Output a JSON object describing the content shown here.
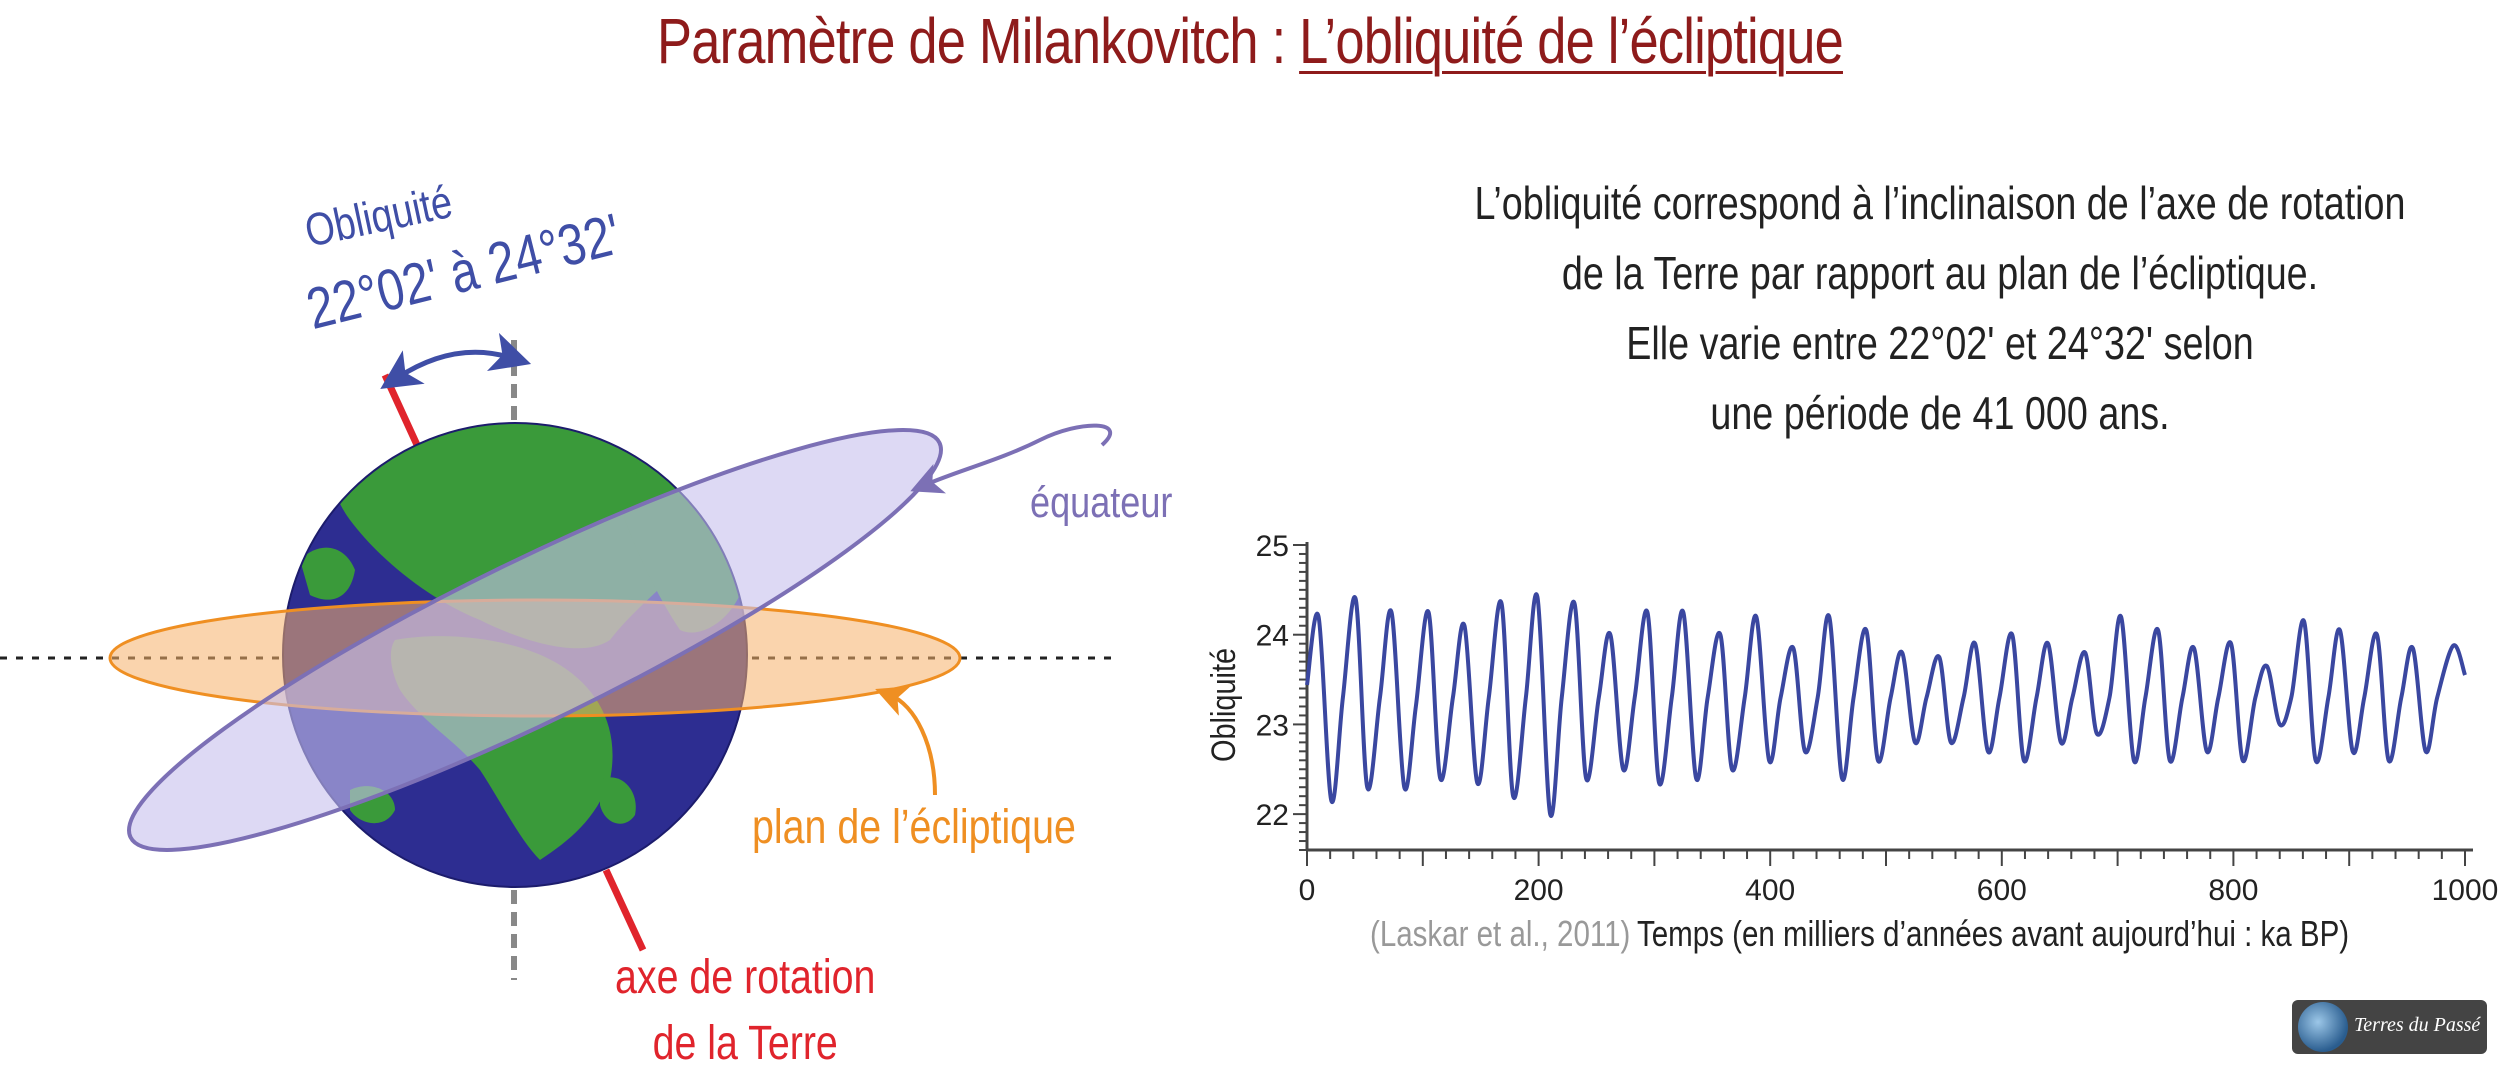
{
  "title": {
    "prefix": "Paramètre de Milankovitch : ",
    "emphasis": "L’obliquité de l’écliptique"
  },
  "description": [
    "L’obliquité correspond à l’inclinaison de l’axe de rotation",
    "de la Terre par rapport au plan de l’écliptique.",
    "Elle varie entre 22°02' et 24°32' selon",
    "une période de 41 000 ans."
  ],
  "diagram": {
    "obliquity_label": "Obliquité",
    "obliquity_range": "22°02' à 24°32'",
    "equator_label": "équateur",
    "ecliptic_label": "plan de l’écliptique",
    "axis_label_line1": "axe de rotation",
    "axis_label_line2": "de la Terre",
    "colors": {
      "title": "#8e1b1b",
      "obliquity": "#3f4ea6",
      "equator": "#7c70b5",
      "ecliptic": "#ef8f22",
      "axis": "#e0242c",
      "ocean": "#2d2d91",
      "land": "#3a9a3a"
    }
  },
  "chart_data": {
    "type": "line",
    "xlabel": "Temps (en milliers d’années avant aujourd’hui : ka BP)",
    "ylabel": "Obliquité",
    "xlim": [
      0,
      1000
    ],
    "ylim": [
      21.6,
      25
    ],
    "x_ticks": [
      0,
      200,
      400,
      600,
      800,
      1000
    ],
    "y_ticks": [
      22,
      23,
      24,
      25
    ],
    "source_note": "(Laskar et al., 2011)",
    "line_color": "#3a47a0",
    "series": [
      {
        "x": [
          0,
          10,
          21,
          31,
          42,
          52,
          63,
          73,
          84,
          94,
          105,
          115,
          126,
          136,
          147,
          157,
          168,
          178,
          189,
          199,
          210,
          220,
          231,
          241,
          252,
          262,
          273,
          283,
          294,
          304,
          315,
          325,
          336,
          346,
          357,
          367,
          378,
          388,
          399,
          409,
          420,
          430,
          441,
          451,
          462,
          472,
          483,
          493,
          504,
          514,
          525,
          535,
          546,
          556,
          567,
          577,
          588,
          598,
          609,
          619,
          630,
          640,
          651,
          661,
          672,
          682,
          693,
          703,
          714,
          724,
          735,
          745,
          756,
          766,
          777,
          787,
          798,
          808,
          819,
          829,
          840,
          850,
          861,
          871,
          882,
          892,
          903,
          913,
          924,
          934,
          945,
          955,
          966,
          976,
          990,
          1000
        ],
        "values": [
          23.44,
          24.2,
          22.15,
          23.3,
          24.4,
          22.3,
          23.3,
          24.25,
          22.3,
          23.2,
          24.25,
          22.4,
          23.3,
          24.1,
          22.35,
          23.3,
          24.35,
          22.2,
          23.3,
          24.42,
          22.0,
          23.3,
          24.35,
          22.4,
          23.3,
          24.0,
          22.5,
          23.3,
          24.25,
          22.35,
          23.3,
          24.25,
          22.4,
          23.3,
          24.0,
          22.5,
          23.3,
          24.2,
          22.6,
          23.3,
          23.85,
          22.7,
          23.3,
          24.2,
          22.4,
          23.3,
          24.05,
          22.6,
          23.3,
          23.8,
          22.8,
          23.3,
          23.75,
          22.8,
          23.3,
          23.9,
          22.7,
          23.3,
          24.0,
          22.6,
          23.3,
          23.9,
          22.8,
          23.3,
          23.8,
          22.9,
          23.3,
          24.2,
          22.6,
          23.3,
          24.05,
          22.6,
          23.3,
          23.85,
          22.7,
          23.3,
          23.9,
          22.6,
          23.3,
          23.65,
          23.0,
          23.3,
          24.15,
          22.6,
          23.3,
          24.05,
          22.7,
          23.3,
          24.0,
          22.6,
          23.3,
          23.85,
          22.7,
          23.3,
          23.88,
          23.55
        ]
      }
    ]
  }
}
